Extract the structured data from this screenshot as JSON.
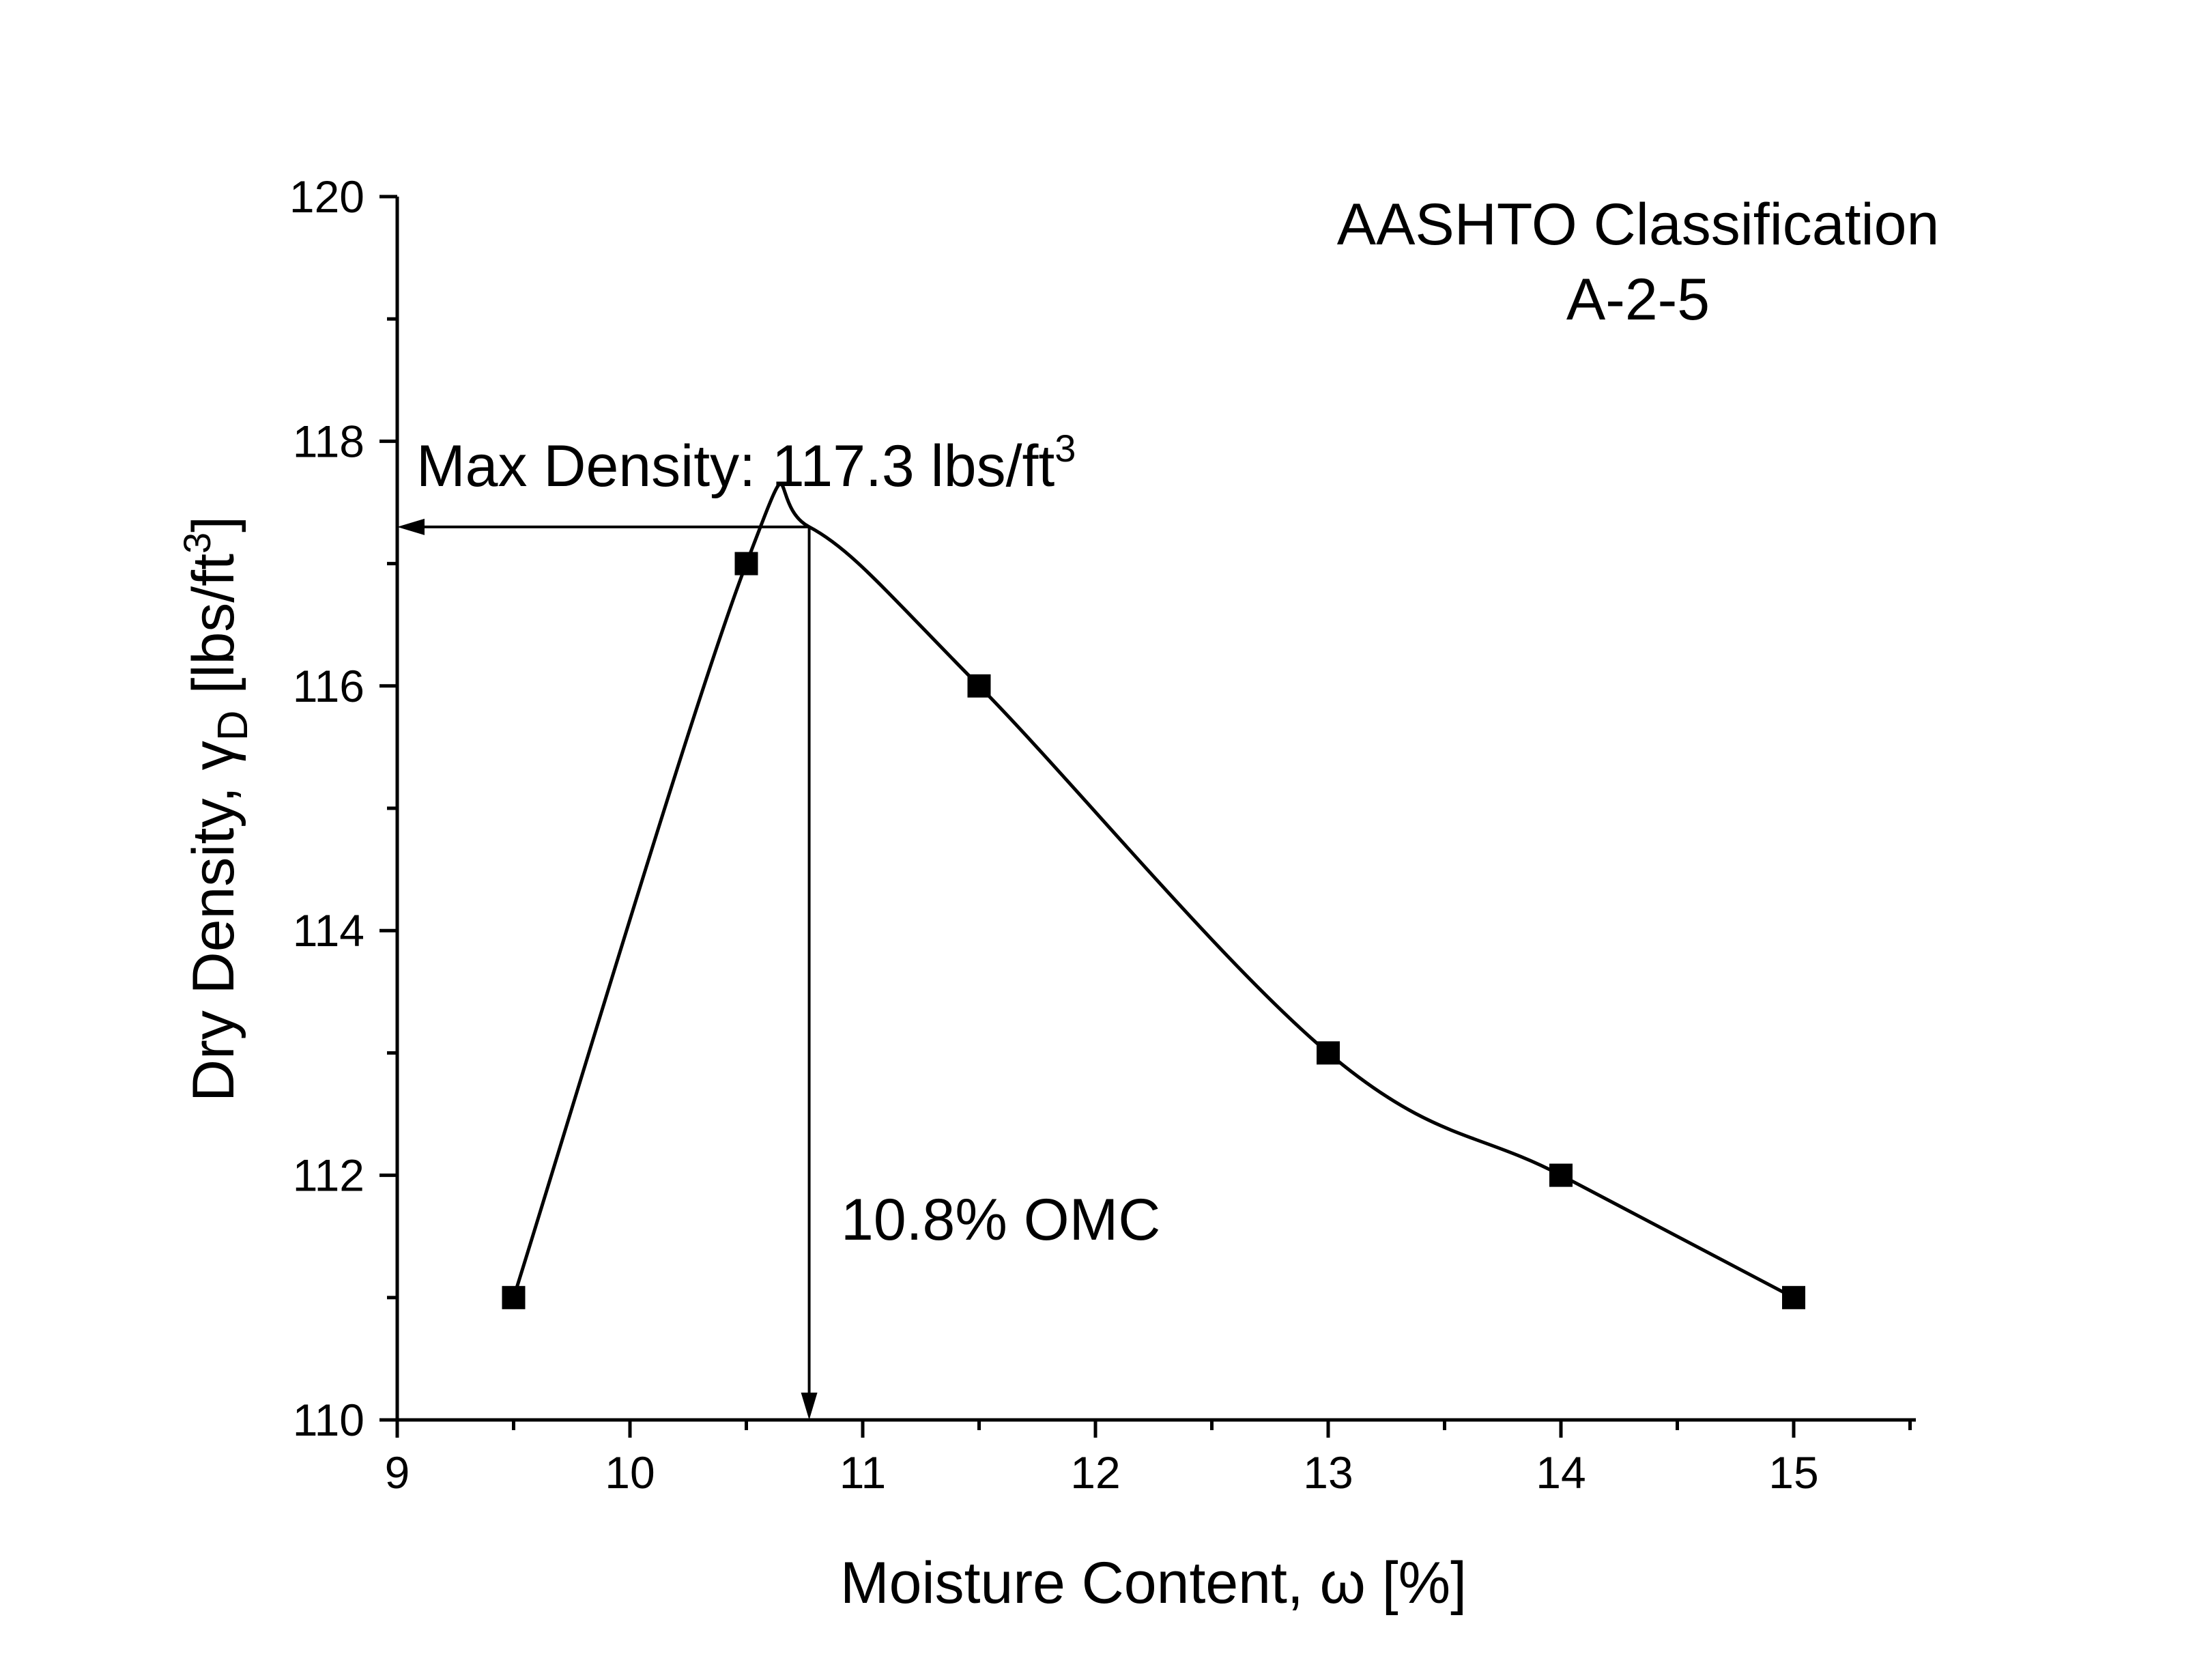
{
  "chart_data": {
    "type": "scatter",
    "xlabel": "Moisture Content, ω [%]",
    "ylabel": "Dry Density, γD [lbs/ft3]",
    "xlim": [
      9,
      15.5
    ],
    "ylim": [
      110,
      120
    ],
    "x_major_ticks": [
      9,
      10,
      11,
      12,
      13,
      14,
      15
    ],
    "y_major_ticks": [
      110,
      112,
      114,
      116,
      118,
      120
    ],
    "grid": false,
    "legend": "none",
    "series": [
      {
        "marker": "square",
        "x": [
          9.5,
          10.5,
          11.5,
          13,
          14,
          15
        ],
        "y": [
          111,
          117,
          116,
          113,
          112,
          111
        ]
      }
    ],
    "fitted_curve": {
      "peak_x": 10.77,
      "peak_y": 117.3
    },
    "annotations": {
      "classification_line1": "AASHTO Classification",
      "classification_line2": "A-2-5",
      "max_density_label": "Max Density: 117.3 lbs/ft",
      "max_density_sup": "3",
      "omc_label": "10.8% OMC"
    },
    "colors": {
      "line": "#000000",
      "marker": "#000000"
    }
  }
}
